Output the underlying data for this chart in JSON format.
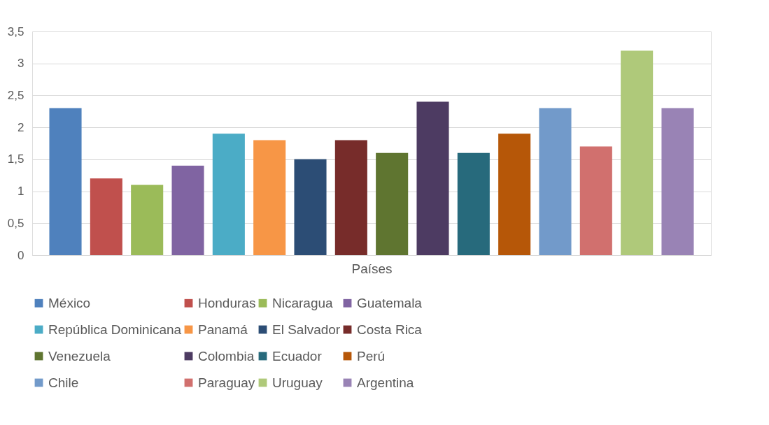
{
  "chart_data": {
    "type": "bar",
    "categories": [
      null
    ],
    "xlabel": "Países",
    "ylim": [
      0,
      3.5
    ],
    "yticks": [
      0,
      {
        "value": 0.5,
        "label": "0,5"
      },
      1,
      {
        "value": 1.5,
        "label": "1,5"
      },
      2,
      {
        "value": 2.5,
        "label": "2,5"
      },
      3,
      {
        "value": 3.5,
        "label": "3,5"
      }
    ],
    "grid": "y",
    "legend": "bottom",
    "series": [
      {
        "name": "México",
        "color": "#4f81bd",
        "values": [
          2.3
        ]
      },
      {
        "name": "Honduras",
        "color": "#c0504d",
        "values": [
          1.2
        ]
      },
      {
        "name": "Nicaragua",
        "color": "#9bbb59",
        "values": [
          1.1
        ]
      },
      {
        "name": "Guatemala",
        "color": "#8064a2",
        "values": [
          1.4
        ]
      },
      {
        "name": "República Dominicana",
        "color": "#4bacc6",
        "values": [
          1.9
        ]
      },
      {
        "name": "Panamá",
        "color": "#f79646",
        "values": [
          1.8
        ]
      },
      {
        "name": "El Salvador",
        "color": "#2c4d75",
        "values": [
          1.5
        ]
      },
      {
        "name": "Costa Rica",
        "color": "#772c2a",
        "values": [
          1.8
        ]
      },
      {
        "name": "Venezuela",
        "color": "#5f7530",
        "values": [
          1.6
        ]
      },
      {
        "name": "Colombia",
        "color": "#4d3b62",
        "values": [
          2.4
        ]
      },
      {
        "name": "Ecuador",
        "color": "#276a7c",
        "values": [
          1.6
        ]
      },
      {
        "name": "Perú",
        "color": "#b65708",
        "values": [
          1.9
        ]
      },
      {
        "name": "Chile",
        "color": "#729aca",
        "values": [
          2.3
        ]
      },
      {
        "name": "Paraguay",
        "color": "#d1706e",
        "values": [
          1.7
        ]
      },
      {
        "name": "Uruguay",
        "color": "#afc97a",
        "values": [
          3.2
        ]
      },
      {
        "name": "Argentina",
        "color": "#9983b5",
        "values": [
          2.3
        ]
      }
    ]
  }
}
